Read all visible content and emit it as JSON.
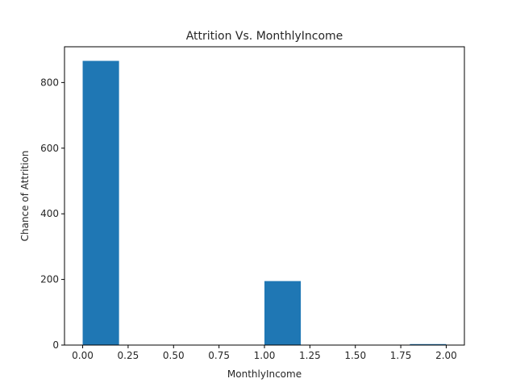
{
  "chart_data": {
    "type": "bar",
    "title": "Attrition Vs. MonthlyIncome",
    "xlabel": "MonthlyIncome",
    "ylabel": "Chance of Attrition",
    "bins": [
      {
        "x0": 0.0,
        "x1": 0.2,
        "value": 866
      },
      {
        "x0": 1.0,
        "x1": 1.2,
        "value": 195
      },
      {
        "x0": 1.8,
        "x1": 2.0,
        "value": 3
      }
    ],
    "xlim": [
      -0.1,
      2.1
    ],
    "ylim": [
      0,
      909
    ],
    "xticks": [
      0.0,
      0.25,
      0.5,
      0.75,
      1.0,
      1.25,
      1.5,
      1.75,
      2.0
    ],
    "xtick_labels": [
      "0.00",
      "0.25",
      "0.50",
      "0.75",
      "1.00",
      "1.25",
      "1.50",
      "1.75",
      "2.00"
    ],
    "yticks": [
      0,
      200,
      400,
      600,
      800
    ],
    "ytick_labels": [
      "0",
      "200",
      "400",
      "600",
      "800"
    ],
    "bar_color": "#1f77b4",
    "grid": false,
    "legend": "none"
  }
}
